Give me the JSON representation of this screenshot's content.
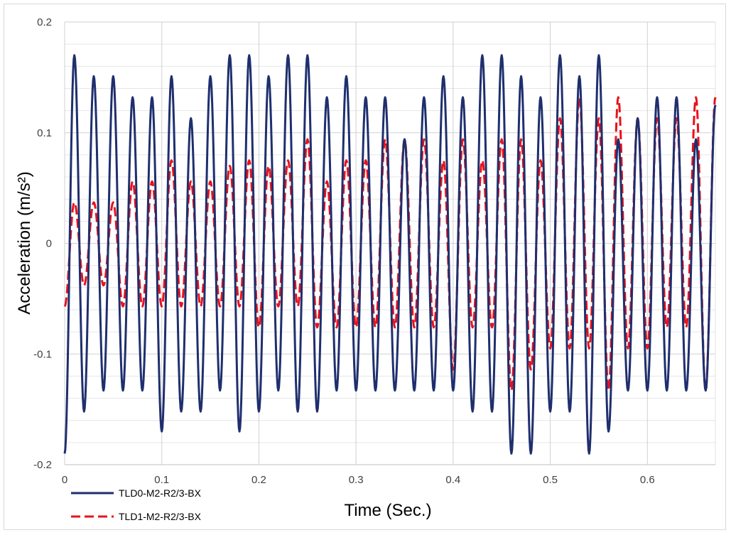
{
  "chart_data": {
    "type": "line",
    "title": "",
    "xlabel": "Time (Sec.)",
    "ylabel": "Acceleration (m/s²)",
    "xlim": [
      0,
      0.67
    ],
    "ylim": [
      -0.2,
      0.2
    ],
    "x_ticks": [
      "0",
      "0.1",
      "0.2",
      "0.3",
      "0.4",
      "0.5",
      "0.6"
    ],
    "x_tick_values": [
      0,
      0.1,
      0.2,
      0.3,
      0.4,
      0.5,
      0.6
    ],
    "y_ticks": [
      "-0.2",
      "-0.1",
      "0",
      "0.1",
      "0.2"
    ],
    "y_tick_values": [
      -0.2,
      -0.1,
      0,
      0.1,
      0.2
    ],
    "grid": true,
    "legend_position": "bottom-left",
    "series": [
      {
        "name": "TLD0-M2-R2/3-BX",
        "color": "#1f2f6e",
        "style": "solid",
        "x": [
          0,
          0.01,
          0.02,
          0.03,
          0.04,
          0.05,
          0.06,
          0.07,
          0.08,
          0.09,
          0.1,
          0.11,
          0.12,
          0.13,
          0.14,
          0.15,
          0.16,
          0.17,
          0.18,
          0.19,
          0.2,
          0.21,
          0.22,
          0.23,
          0.24,
          0.25,
          0.26,
          0.27,
          0.28,
          0.29,
          0.3,
          0.31,
          0.32,
          0.33,
          0.34,
          0.35,
          0.36,
          0.37,
          0.38,
          0.39,
          0.4,
          0.41,
          0.42,
          0.43,
          0.44,
          0.45,
          0.46,
          0.47,
          0.48,
          0.49,
          0.5,
          0.51,
          0.52,
          0.53,
          0.54,
          0.55,
          0.56,
          0.57,
          0.58,
          0.59,
          0.6,
          0.61,
          0.62,
          0.63,
          0.64,
          0.65,
          0.66,
          0.67
        ],
        "values": [
          -0.19,
          0.17,
          -0.152,
          0.151,
          -0.133,
          0.151,
          -0.133,
          0.132,
          -0.133,
          0.132,
          -0.17,
          0.151,
          -0.152,
          0.113,
          -0.152,
          0.151,
          -0.133,
          0.17,
          -0.17,
          0.17,
          -0.152,
          0.151,
          -0.133,
          0.17,
          -0.152,
          0.17,
          -0.152,
          0.132,
          -0.133,
          0.151,
          -0.133,
          0.132,
          -0.133,
          0.132,
          -0.133,
          0.094,
          -0.133,
          0.132,
          -0.133,
          0.151,
          -0.133,
          0.132,
          -0.152,
          0.17,
          -0.152,
          0.17,
          -0.19,
          0.151,
          -0.19,
          0.132,
          -0.152,
          0.17,
          -0.152,
          0.151,
          -0.19,
          0.17,
          -0.17,
          0.094,
          -0.133,
          0.113,
          -0.133,
          0.132,
          -0.133,
          0.132,
          -0.133,
          0.094,
          -0.133,
          0.125
        ]
      },
      {
        "name": "TLD1-M2-R2/3-BX",
        "color": "#e8121a",
        "style": "dashed",
        "x": [
          0,
          0.01,
          0.02,
          0.03,
          0.04,
          0.05,
          0.06,
          0.07,
          0.08,
          0.09,
          0.1,
          0.11,
          0.12,
          0.13,
          0.14,
          0.15,
          0.16,
          0.17,
          0.18,
          0.19,
          0.2,
          0.21,
          0.22,
          0.23,
          0.24,
          0.25,
          0.26,
          0.27,
          0.28,
          0.29,
          0.3,
          0.31,
          0.32,
          0.33,
          0.34,
          0.35,
          0.36,
          0.37,
          0.38,
          0.39,
          0.4,
          0.41,
          0.42,
          0.43,
          0.44,
          0.45,
          0.46,
          0.47,
          0.48,
          0.49,
          0.5,
          0.51,
          0.52,
          0.53,
          0.54,
          0.55,
          0.56,
          0.57,
          0.58,
          0.59,
          0.6,
          0.61,
          0.62,
          0.63,
          0.64,
          0.65,
          0.66,
          0.67
        ],
        "values": [
          -0.057,
          0.037,
          -0.038,
          0.037,
          -0.038,
          0.037,
          -0.057,
          0.056,
          -0.057,
          0.056,
          -0.057,
          0.075,
          -0.057,
          0.056,
          -0.057,
          0.056,
          -0.057,
          0.07,
          -0.057,
          0.075,
          -0.076,
          0.07,
          -0.057,
          0.075,
          -0.057,
          0.094,
          -0.076,
          0.056,
          -0.076,
          0.075,
          -0.076,
          0.075,
          -0.076,
          0.094,
          -0.076,
          0.094,
          -0.076,
          0.094,
          -0.076,
          0.075,
          -0.114,
          0.094,
          -0.076,
          0.075,
          -0.076,
          0.094,
          -0.133,
          0.094,
          -0.114,
          0.075,
          -0.095,
          0.113,
          -0.095,
          0.132,
          -0.095,
          0.113,
          -0.133,
          0.132,
          -0.095,
          0.113,
          -0.095,
          0.113,
          -0.076,
          0.113,
          -0.076,
          0.132,
          -0.133,
          0.132
        ]
      }
    ]
  }
}
